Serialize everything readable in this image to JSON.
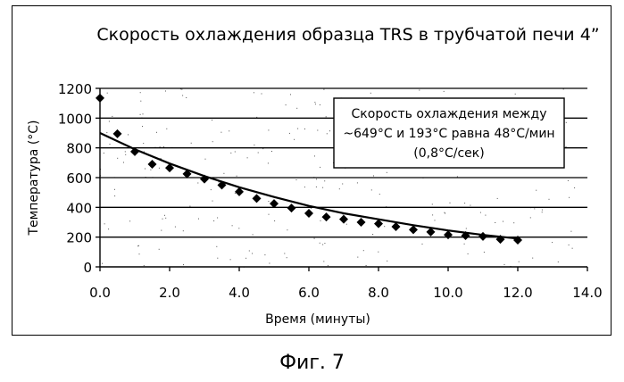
{
  "chart_data": {
    "type": "scatter",
    "title": "Скорость охлаждения образца TRS в трубчатой печи 4”",
    "xlabel": "Время (минуты)",
    "ylabel": "Температура (°C)",
    "xlim": [
      0,
      14
    ],
    "ylim": [
      0,
      1200
    ],
    "x_ticks": [
      "0.0",
      "2.0",
      "4.0",
      "6.0",
      "8.0",
      "10.0",
      "12.0",
      "14.0"
    ],
    "y_ticks": [
      "0",
      "200",
      "400",
      "600",
      "800",
      "1000",
      "1200"
    ],
    "grid": "horizontal",
    "series": [
      {
        "marker": "diamond",
        "x": [
          0.0,
          0.5,
          1.0,
          1.5,
          2.0,
          2.5,
          3.0,
          3.5,
          4.0,
          4.5,
          5.0,
          5.5,
          6.0,
          6.5,
          7.0,
          7.5,
          8.0,
          8.5,
          9.0,
          9.5,
          10.0,
          10.5,
          11.0,
          11.5,
          12.0
        ],
        "y": [
          1135,
          895,
          775,
          690,
          665,
          625,
          590,
          550,
          505,
          460,
          425,
          395,
          360,
          335,
          320,
          300,
          290,
          270,
          250,
          235,
          215,
          210,
          205,
          185,
          180
        ]
      }
    ],
    "trendline": {
      "type": "exponential",
      "x": [
        0,
        1,
        2,
        3,
        4,
        5,
        6,
        7,
        8,
        9,
        10,
        11,
        12
      ],
      "y": [
        900,
        790,
        695,
        610,
        535,
        470,
        410,
        360,
        320,
        280,
        245,
        215,
        190
      ]
    },
    "annotation": {
      "lines": [
        "Скорость охлаждения между",
        "~649°C и 193°C равна 48°C/мин",
        "(0,8°C/сек)"
      ],
      "placement": "top-right"
    }
  },
  "caption": "Фиг. 7"
}
